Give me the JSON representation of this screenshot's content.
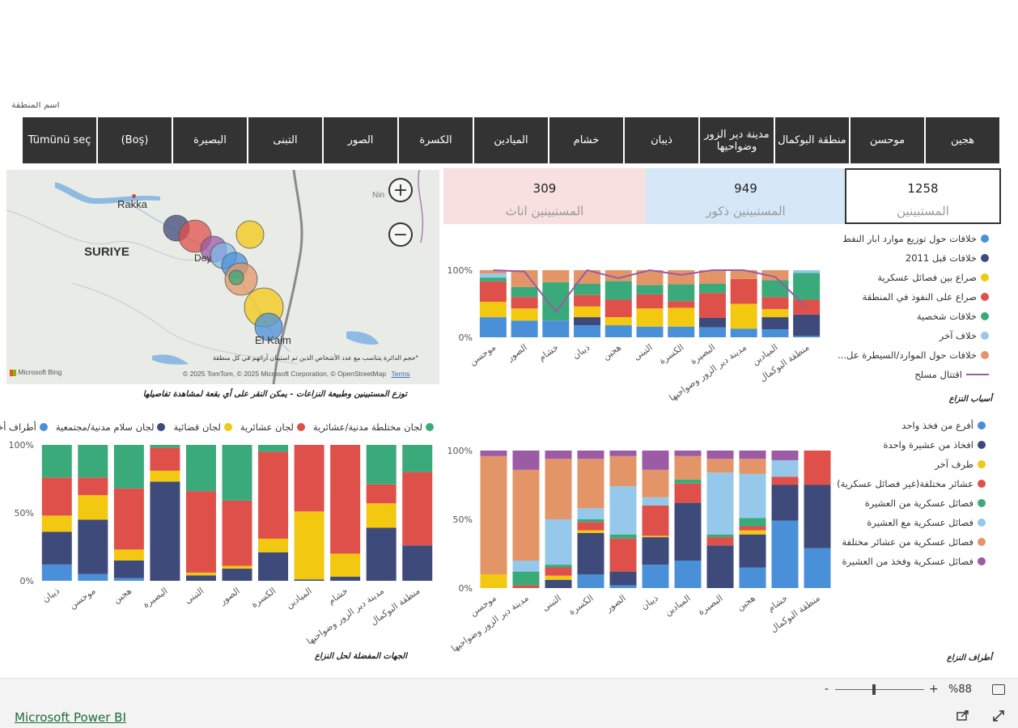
{
  "slicer": {
    "label": "اسم المنطقة",
    "items": [
      "Tümünü seç",
      "(Boş)",
      "البصيرة",
      "التبنى",
      "الصور",
      "الكسرة",
      "الميادين",
      "خشام",
      "ذيبان",
      "مدينة دير الزور وضواحيها",
      "منطقة البوكمال",
      "موحسن",
      "هجين"
    ]
  },
  "map": {
    "labels": {
      "rakka": "Rakka",
      "suriye": "SURIYE",
      "deir": "Dey",
      "kaim": "El Kaim",
      "nin": "Nin"
    },
    "zoom_in": "+",
    "zoom_out": "−",
    "note": "*حجم الدائرة يتناسب مع عدد الأشخاص الذين تم استبيان آرائهم في كل منطقة",
    "bing": "Microsoft Bing",
    "copyright": "© 2025 TomTom, © 2025 Microsoft Corporation, © OpenStreetMap",
    "terms": "Terms",
    "title": "توزع المستبينين وطبيعة النزاعات - يمكن النقر على أي بقعة لمشاهدة تفاصيلها",
    "circles": [
      {
        "color": "#3d4a7a"
      },
      {
        "color": "#e0504a"
      },
      {
        "color": "#9b5ba5"
      },
      {
        "color": "#7fb8e8"
      },
      {
        "color": "#4a90d9"
      },
      {
        "color": "#e49567"
      },
      {
        "color": "#3aaa7a"
      },
      {
        "color": "#f2c811"
      },
      {
        "color": "#f2c811"
      },
      {
        "color": "#4a90d9"
      }
    ]
  },
  "cards": {
    "female": {
      "value": "309",
      "label": "المستبينين اناث"
    },
    "male": {
      "value": "949",
      "label": "المستبينين ذكور"
    },
    "total": {
      "value": "1258",
      "label": "المستبينين"
    }
  },
  "colors": {
    "blue": "#4a90d9",
    "navy": "#3d4a7a",
    "yellow": "#f2c811",
    "red": "#e0504a",
    "green": "#3aaa7a",
    "lightblue": "#96c8ec",
    "orange": "#e49567",
    "purple": "#9b5ba5"
  },
  "chart_data": [
    {
      "id": "causes",
      "type": "bar",
      "title": "أسباب النزاع",
      "stacked": true,
      "ylim": [
        0,
        100
      ],
      "yticks": [
        "0%",
        "100%"
      ],
      "categories": [
        "موحسن",
        "الصور",
        "خشام",
        "ذيبان",
        "هجين",
        "التبنى",
        "الكسرة",
        "البصيرة",
        "مدينة دير الزور وضواحيها",
        "الميادين",
        "منطقة البوكمال"
      ],
      "series": [
        {
          "name": "خلافات حول توزيع موارد ابار النفط",
          "color": "#4a90d9",
          "values": [
            30,
            25,
            25,
            18,
            18,
            16,
            16,
            15,
            13,
            12,
            2
          ]
        },
        {
          "name": "خلافات قبل 2011",
          "color": "#3d4a7a",
          "values": [
            0,
            0,
            0,
            12,
            0,
            0,
            0,
            14,
            0,
            18,
            32
          ]
        },
        {
          "name": "صراع بين فصائل عسكرية",
          "color": "#f2c811",
          "values": [
            23,
            18,
            0,
            16,
            12,
            27,
            28,
            0,
            37,
            12,
            0
          ]
        },
        {
          "name": "صراع على النفوذ في المنطقة",
          "color": "#e0504a",
          "values": [
            30,
            17,
            0,
            17,
            26,
            21,
            10,
            37,
            37,
            18,
            22
          ]
        },
        {
          "name": "خلافات شخصية",
          "color": "#3aaa7a",
          "values": [
            6,
            15,
            57,
            17,
            28,
            14,
            25,
            14,
            0,
            25,
            40
          ]
        },
        {
          "name": "خلاف آخر",
          "color": "#96c8ec",
          "values": [
            6,
            0,
            0,
            0,
            0,
            0,
            0,
            0,
            0,
            0,
            4
          ]
        },
        {
          "name": "خلافات حول الموارد/السيطرة عل...",
          "color": "#e49567",
          "values": [
            5,
            25,
            18,
            20,
            16,
            22,
            21,
            20,
            13,
            15,
            0
          ]
        }
      ],
      "line": {
        "name": "اقتتال مسلح",
        "color": "#9b5ba5",
        "values": [
          100,
          98,
          38,
          100,
          88,
          100,
          93,
          100,
          100,
          90,
          45
        ]
      }
    },
    {
      "id": "resolution",
      "type": "bar",
      "title": "الجهات المفضلة لحل النزاع",
      "stacked": true,
      "ylim": [
        0,
        100
      ],
      "yticks": [
        "0%",
        "50%",
        "100%"
      ],
      "categories": [
        "ذيبان",
        "موحسن",
        "هجين",
        "البصيرة",
        "التبنى",
        "الصور",
        "الكسرة",
        "الميادين",
        "خشام",
        "مدينة دير الزور وضواحيها",
        "منطقة البوكمال"
      ],
      "series": [
        {
          "name": "أطراف أخرى",
          "color": "#4a90d9",
          "values": [
            12,
            5,
            2,
            0,
            0,
            0,
            0,
            0,
            0,
            0,
            0
          ]
        },
        {
          "name": "لجان سلام مدنية/مجتمعية",
          "color": "#3d4a7a",
          "values": [
            24,
            40,
            13,
            73,
            4,
            9,
            21,
            1,
            3,
            39,
            26
          ]
        },
        {
          "name": "لجان قضائية",
          "color": "#f2c811",
          "values": [
            12,
            18,
            8,
            8,
            2,
            2,
            10,
            50,
            17,
            18,
            0
          ]
        },
        {
          "name": "لجان عشائرية",
          "color": "#e0504a",
          "values": [
            28,
            13,
            45,
            17,
            60,
            48,
            64,
            49,
            80,
            14,
            54
          ]
        },
        {
          "name": "لجان مختلطة مدنية/عشائرية",
          "color": "#3aaa7a",
          "values": [
            24,
            24,
            32,
            2,
            34,
            41,
            5,
            0,
            0,
            29,
            20
          ]
        }
      ]
    },
    {
      "id": "parties",
      "type": "bar",
      "title": "أطراف النزاع",
      "stacked": true,
      "ylim": [
        0,
        100
      ],
      "yticks": [
        "0%",
        "50%",
        "100%"
      ],
      "categories": [
        "موحسن",
        "مدينة دير الزور وضواحيها",
        "التبنى",
        "الكسرة",
        "الصور",
        "ذيبان",
        "الميادين",
        "البصيرة",
        "هجين",
        "خشام",
        "منطقة البوكمال"
      ],
      "series": [
        {
          "name": "أفرع من فخذ واحد",
          "color": "#4a90d9",
          "values": [
            0,
            0,
            0,
            10,
            2,
            17,
            20,
            0,
            15,
            49,
            29
          ]
        },
        {
          "name": "افخاذ من عشيرة واحدة",
          "color": "#3d4a7a",
          "values": [
            0,
            0,
            6,
            30,
            10,
            20,
            42,
            31,
            24,
            26,
            46
          ]
        },
        {
          "name": "طرف آخر",
          "color": "#f2c811",
          "values": [
            10,
            0,
            3,
            2,
            0,
            1,
            0,
            0,
            3,
            0,
            0
          ]
        },
        {
          "name": "عشائر مختلفة(غير فصائل عسكرية)",
          "color": "#e0504a",
          "values": [
            0,
            2,
            6,
            6,
            24,
            22,
            14,
            6,
            3,
            6,
            25
          ]
        },
        {
          "name": "فصائل عسكرية  من العشيرة",
          "color": "#3aaa7a",
          "values": [
            0,
            10,
            2,
            2,
            3,
            0,
            3,
            2,
            6,
            0,
            0
          ]
        },
        {
          "name": "فصائل عسكرية مع العشيرة",
          "color": "#96c8ec",
          "values": [
            0,
            8,
            33,
            8,
            35,
            6,
            0,
            45,
            32,
            12,
            0
          ]
        },
        {
          "name": "فصائل عسكرية من عشائر مختلفة",
          "color": "#e49567",
          "values": [
            86,
            66,
            44,
            36,
            22,
            20,
            17,
            10,
            11,
            0,
            0
          ]
        },
        {
          "name": "فصائل عسكرية وفخذ من العشيرة",
          "color": "#9b5ba5",
          "values": [
            4,
            14,
            6,
            6,
            4,
            14,
            4,
            6,
            6,
            7,
            0
          ]
        }
      ]
    }
  ],
  "zoom": {
    "minus": "-",
    "plus": "+",
    "level": "%88"
  },
  "footer": {
    "link": "Microsoft Power BI"
  }
}
